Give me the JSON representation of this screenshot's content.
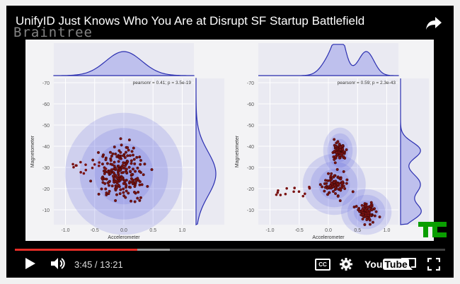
{
  "video": {
    "title": "UnifyID Just Knows Who You Are at Disrupt SF Startup Battlefield",
    "watermark": "Braintree",
    "current_time": "3:45",
    "duration": "13:21",
    "time_display": "3:45 / 13:21",
    "played_fraction": 0.285,
    "loaded_fraction": 0.36
  },
  "icons": {
    "share": "share-arrow-icon",
    "play": "play-icon",
    "volume": "volume-icon",
    "captions": "closed-captions-icon",
    "settings": "gear-icon",
    "youtube": "youtube-logo",
    "cast": "cast-icon",
    "fullscreen": "fullscreen-icon",
    "channel_logo": "techcrunch-logo"
  },
  "controls": {
    "captions_label": "CC",
    "youtube_label_a": "You",
    "youtube_label_b": "Tube"
  },
  "colors": {
    "progress_played": "#e52d27",
    "point": "#7a1212",
    "density": "#5a5fe0",
    "techcrunch": "#0a9e01"
  },
  "chart_data": [
    {
      "type": "scatter",
      "annotation": "pearsonr = 0.41; p = 3.5e-19",
      "xlabel": "Accelerometer",
      "ylabel": "Magnetometer",
      "xticks": [
        "-1.0",
        "-0.5",
        "0.0",
        "0.5",
        "1.0"
      ],
      "yticks": [
        "-70",
        "-60",
        "-50",
        "-40",
        "-30",
        "-20",
        "-10"
      ],
      "xlim": [
        -1.2,
        1.2
      ],
      "ylim": [
        -72,
        -3
      ],
      "center": {
        "x": 0.0,
        "y": -27
      },
      "spread": {
        "x": 0.28,
        "y": 8
      }
    },
    {
      "type": "scatter",
      "annotation": "pearsonr = 0.59; p = 2.3e-43",
      "xlabel": "Accelerometer",
      "ylabel": "Magnetometer",
      "xticks": [
        "-1.0",
        "-0.5",
        "0.0",
        "0.5",
        "1.0"
      ],
      "yticks": [
        "-70",
        "-60",
        "-50",
        "-40",
        "-30",
        "-20",
        "-10"
      ],
      "xlim": [
        -1.2,
        1.2
      ],
      "ylim": [
        -72,
        -3
      ],
      "clusters": [
        {
          "x": 0.1,
          "y": -22,
          "sx": 0.15,
          "sy": 4
        },
        {
          "x": 0.2,
          "y": -38,
          "sx": 0.08,
          "sy": 3
        },
        {
          "x": 0.65,
          "y": -9,
          "sx": 0.12,
          "sy": 3
        }
      ]
    }
  ]
}
